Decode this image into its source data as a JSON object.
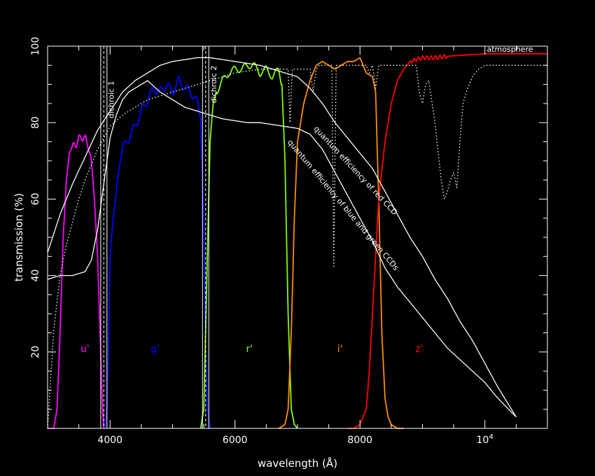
{
  "chart_data": {
    "type": "line",
    "title": "",
    "xlabel": "wavelength (Å)",
    "ylabel": "transmission (%)",
    "xlim": [
      3000,
      11000
    ],
    "ylim": [
      0,
      100
    ],
    "grid": false,
    "x_ticks": [
      {
        "value": 4000,
        "label": "4000"
      },
      {
        "value": 6000,
        "label": "6000"
      },
      {
        "value": 8000,
        "label": "8000"
      },
      {
        "value": 10000,
        "label": "10",
        "exponent": "4"
      }
    ],
    "y_ticks": [
      {
        "value": 20,
        "label": "20"
      },
      {
        "value": 40,
        "label": "40"
      },
      {
        "value": 60,
        "label": "60"
      },
      {
        "value": 80,
        "label": "80"
      },
      {
        "value": 100,
        "label": "100"
      }
    ],
    "series": [
      {
        "key": "u",
        "name": "u'",
        "color": "#ff00ff",
        "style": "solid",
        "x": [
          3000,
          3100,
          3150,
          3200,
          3250,
          3300,
          3350,
          3400,
          3450,
          3500,
          3550,
          3600,
          3650,
          3700,
          3750,
          3800,
          3850,
          3880,
          3900
        ],
        "y": [
          0,
          0,
          5,
          25,
          50,
          65,
          72,
          74,
          74,
          76,
          76,
          76,
          74,
          70,
          60,
          45,
          20,
          5,
          0
        ]
      },
      {
        "key": "g",
        "name": "g'",
        "color": "#0000ff",
        "style": "solid",
        "x": [
          3920,
          3950,
          3980,
          4000,
          4050,
          4100,
          4150,
          4200,
          4300,
          4400,
          4500,
          4600,
          4700,
          4800,
          4900,
          5000,
          5100,
          5200,
          5300,
          5400,
          5450,
          5500,
          5530,
          5560,
          5600
        ],
        "y": [
          0,
          5,
          25,
          45,
          55,
          62,
          70,
          73,
          76,
          79,
          83,
          86,
          89,
          88,
          90,
          88,
          91,
          89,
          88,
          85,
          82,
          55,
          20,
          5,
          0
        ]
      },
      {
        "key": "r",
        "name": "r'",
        "color": "#7fff00",
        "style": "solid",
        "x": [
          5450,
          5500,
          5550,
          5600,
          5650,
          5700,
          5800,
          5900,
          6000,
          6100,
          6200,
          6300,
          6400,
          6500,
          6600,
          6700,
          6750,
          6800,
          6850,
          6900,
          6950,
          7000
        ],
        "y": [
          0,
          5,
          40,
          75,
          85,
          88,
          91,
          93,
          94,
          94,
          95,
          95,
          93,
          94,
          92,
          94,
          90,
          70,
          30,
          5,
          1,
          0
        ]
      },
      {
        "key": "i",
        "name": "i'",
        "color": "#ff8c00",
        "style": "solid",
        "x": [
          6700,
          6800,
          6850,
          6900,
          6950,
          7000,
          7100,
          7200,
          7300,
          7400,
          7500,
          7600,
          7700,
          7800,
          7900,
          8000,
          8100,
          8200,
          8250,
          8300,
          8350,
          8400,
          8450,
          8500,
          8600,
          8700
        ],
        "y": [
          0,
          1,
          5,
          25,
          55,
          75,
          85,
          91,
          95,
          96,
          95,
          94,
          95,
          96,
          96,
          97,
          93,
          92,
          88,
          60,
          25,
          8,
          3,
          1,
          0,
          0
        ]
      },
      {
        "key": "z",
        "name": "z'",
        "color": "#ff0000",
        "style": "solid",
        "x": [
          7800,
          7900,
          8000,
          8100,
          8150,
          8200,
          8250,
          8300,
          8400,
          8500,
          8600,
          8700,
          8800,
          9000,
          9200,
          9500,
          10000,
          10500,
          11000
        ],
        "y": [
          0,
          0,
          1,
          5,
          15,
          30,
          45,
          60,
          75,
          85,
          91,
          94,
          96,
          97,
          97,
          97.5,
          98,
          98,
          98
        ]
      },
      {
        "key": "qe_red",
        "name": "quantum efficiency of red CCD",
        "color": "#ffffff",
        "style": "solid",
        "x": [
          3000,
          3200,
          3400,
          3600,
          3800,
          4000,
          4200,
          4400,
          4600,
          4800,
          5000,
          5200,
          5400,
          5600,
          5800,
          6000,
          6200,
          6400,
          6600,
          6800,
          7000,
          7200,
          7400,
          7600,
          7800,
          8000,
          8200,
          8400,
          8600,
          8800,
          9000,
          9200,
          9400,
          9600,
          9800,
          10000,
          10200,
          10500
        ],
        "y": [
          46,
          56,
          64,
          71,
          78,
          83,
          88,
          91,
          93,
          95,
          96,
          96.5,
          97,
          97,
          96.5,
          96,
          95.5,
          95,
          94,
          93,
          92,
          89,
          85,
          80,
          76,
          72,
          68,
          62,
          56,
          50,
          45,
          39,
          34,
          28,
          23,
          17,
          11,
          3
        ]
      },
      {
        "key": "qe_blue",
        "name": "quantum efficiency of blue and green CCDs",
        "color": "#ffffff",
        "style": "solid",
        "x": [
          3000,
          3200,
          3400,
          3600,
          3700,
          3800,
          3900,
          4000,
          4100,
          4200,
          4300,
          4400,
          4500,
          4600,
          4800,
          5000,
          5200,
          5400,
          5600,
          5800,
          6000,
          6200,
          6400,
          6600,
          6800,
          7000,
          7200,
          7400,
          7600,
          7800,
          8000,
          8200,
          8400,
          8600,
          8800,
          9000,
          9200,
          9400,
          9600,
          9800,
          10000,
          10200,
          10500
        ],
        "y": [
          39,
          40,
          40,
          41,
          44,
          52,
          64,
          76,
          82,
          86,
          88,
          89,
          90,
          91,
          88,
          86,
          84,
          83,
          82,
          81,
          80.5,
          80,
          80,
          79.5,
          79,
          78.5,
          77,
          73,
          67,
          61,
          55,
          49,
          42,
          37,
          33,
          29,
          25,
          21,
          18,
          15,
          12,
          8,
          3
        ]
      },
      {
        "key": "atmosphere",
        "name": "atmosphere",
        "color": "#ffffff",
        "style": "dotted",
        "x": [
          3000,
          3100,
          3200,
          3300,
          3400,
          3500,
          3600,
          3700,
          3800,
          3900,
          4000,
          4200,
          4400,
          4600,
          4800,
          5000,
          5200,
          5400,
          5600,
          5800,
          6000,
          6200,
          6400,
          6600,
          6850,
          6880,
          6900,
          6920,
          6950,
          7000,
          7100,
          7200,
          7250,
          7300,
          7350,
          7400,
          7550,
          7580,
          7600,
          7620,
          7650,
          7700,
          7800,
          7900,
          8000,
          8100,
          8150,
          8200,
          8250,
          8300,
          8400,
          8500,
          8600,
          8700,
          8800,
          8900,
          8950,
          9000,
          9050,
          9100,
          9200,
          9300,
          9350,
          9400,
          9450,
          9500,
          9550,
          9600,
          9650,
          9700,
          9750,
          9800,
          9900,
          10000,
          10500,
          11000
        ],
        "y": [
          0,
          26,
          40,
          48,
          54,
          60,
          65,
          69,
          73,
          76,
          79,
          82,
          84,
          86,
          87,
          88,
          89,
          90,
          91,
          92,
          93,
          93.5,
          94,
          94,
          94,
          80,
          88,
          94,
          94,
          94,
          94,
          94,
          88,
          94,
          95,
          95,
          95,
          42,
          70,
          95,
          95,
          95,
          95,
          95,
          95,
          95,
          93,
          95,
          89,
          95,
          95,
          95,
          95,
          95,
          95,
          95,
          88,
          85,
          90,
          91,
          80,
          65,
          60,
          62,
          65,
          67,
          63,
          75,
          85,
          88,
          90,
          92,
          94,
          95,
          95,
          95
        ]
      }
    ],
    "dichroic": [
      {
        "label": "dichroic 1",
        "lines": [
          3850,
          3900,
          3950
        ]
      },
      {
        "label": "dichroic 2",
        "lines": [
          5480,
          5530,
          5580
        ]
      }
    ],
    "band_labels": [
      {
        "key": "u",
        "text": "u'",
        "x": 3600,
        "y": 20,
        "color": "#ff00ff"
      },
      {
        "key": "g",
        "text": "g'",
        "x": 4720,
        "y": 20,
        "color": "#0000ff"
      },
      {
        "key": "r",
        "text": "r'",
        "x": 6230,
        "y": 20,
        "color": "#7fff00"
      },
      {
        "key": "i",
        "text": "i'",
        "x": 7680,
        "y": 20,
        "color": "#ff8c00"
      },
      {
        "key": "z",
        "text": "z'",
        "x": 8950,
        "y": 20,
        "color": "#ff0000"
      }
    ],
    "annotations": [
      {
        "key": "atmosphere",
        "text": "atmosphere",
        "x": 10400,
        "y": 98.5,
        "angle": 0
      },
      {
        "key": "qe_red",
        "text": "quantum efficiency of red CCD",
        "x": 7900,
        "y": 67,
        "angle": 47
      },
      {
        "key": "qe_blue",
        "text": "quantum efficiency of blue and green CCDs",
        "x": 7700,
        "y": 58,
        "angle": 50
      },
      {
        "key": "dichroic1",
        "text": "dichroic 1",
        "x": 4060,
        "y": 86,
        "angle": -90
      },
      {
        "key": "dichroic2",
        "text": "dichroic 2",
        "x": 5700,
        "y": 90,
        "angle": -90
      }
    ]
  }
}
